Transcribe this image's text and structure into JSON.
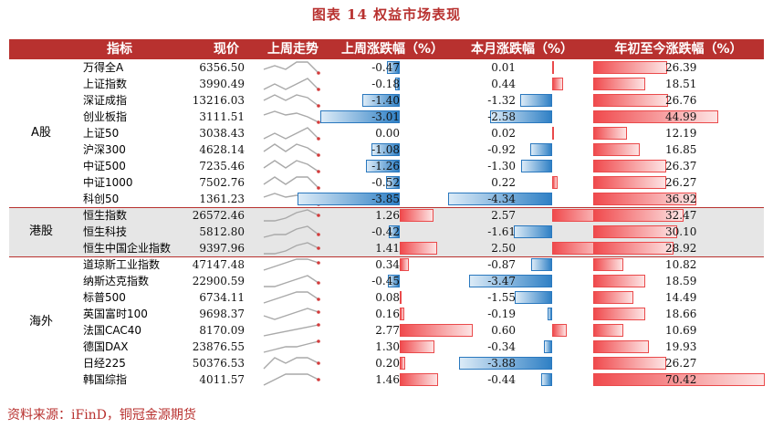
{
  "title": "图表 14 权益市场表现",
  "headers": {
    "name": "指标",
    "price": "现价",
    "trend": "上周走势",
    "week_change": "上周涨跌幅（%）",
    "month_change": "本月涨跌幅（%）",
    "ytd_change": "年初至今涨跌幅（%）"
  },
  "groups": [
    {
      "label": "A股",
      "start": 0,
      "count": 9,
      "shaded": false
    },
    {
      "label": "港股",
      "start": 9,
      "count": 3,
      "shaded": true
    },
    {
      "label": "海外",
      "start": 12,
      "count": 8,
      "shaded": false
    }
  ],
  "colors": {
    "accent": "#b8312f",
    "positive": "#f04a4d",
    "negative": "#2f80c5",
    "shade": "#e6e6e6"
  },
  "rows": [
    {
      "name": "万得全A",
      "price": "6356.50",
      "week": -0.47,
      "month": 0.01,
      "ytd": 26.39,
      "trend": [
        5,
        6,
        5,
        7,
        7,
        4
      ]
    },
    {
      "name": "上证指数",
      "price": "3990.49",
      "week": -0.18,
      "month": 0.44,
      "ytd": 18.51,
      "trend": [
        5,
        6,
        5,
        6,
        7,
        5
      ]
    },
    {
      "name": "深证成指",
      "price": "13216.03",
      "week": -1.4,
      "month": -1.32,
      "ytd": 26.76,
      "trend": [
        5,
        7,
        5,
        7,
        6,
        3
      ]
    },
    {
      "name": "创业板指",
      "price": "3111.51",
      "week": -3.01,
      "month": -2.58,
      "ytd": 44.99,
      "trend": [
        6,
        8,
        6,
        7,
        5,
        2
      ]
    },
    {
      "name": "上证50",
      "price": "3038.43",
      "week": 0.0,
      "month": 0.02,
      "ytd": 12.19,
      "trend": [
        5,
        6,
        5,
        6,
        7,
        5
      ]
    },
    {
      "name": "沪深300",
      "price": "4628.14",
      "week": -1.08,
      "month": -0.92,
      "ytd": 16.85,
      "trend": [
        5,
        7,
        5,
        7,
        6,
        4
      ]
    },
    {
      "name": "中证500",
      "price": "7235.46",
      "week": -1.26,
      "month": -1.3,
      "ytd": 26.37,
      "trend": [
        5,
        7,
        5,
        7,
        6,
        4
      ]
    },
    {
      "name": "中证1000",
      "price": "7502.76",
      "week": -0.52,
      "month": 0.22,
      "ytd": 26.27,
      "trend": [
        5,
        7,
        5,
        7,
        7,
        4
      ]
    },
    {
      "name": "科创50",
      "price": "1361.23",
      "week": -3.85,
      "month": -4.34,
      "ytd": 36.92,
      "trend": [
        6,
        8,
        6,
        7,
        5,
        2
      ]
    },
    {
      "name": "恒生指数",
      "price": "26572.46",
      "week": 1.26,
      "month": 2.57,
      "ytd": 32.47,
      "trend": [
        3,
        3,
        4,
        6,
        7,
        5
      ]
    },
    {
      "name": "恒生科技",
      "price": "5812.80",
      "week": -0.42,
      "month": -1.61,
      "ytd": 30.1,
      "trend": [
        3,
        4,
        4,
        6,
        7,
        4
      ]
    },
    {
      "name": "恒生中国企业指数",
      "price": "9397.96",
      "week": 1.41,
      "month": 2.5,
      "ytd": 28.92,
      "trend": [
        3,
        3,
        4,
        6,
        7,
        5
      ]
    },
    {
      "name": "道琼斯工业指数",
      "price": "47147.48",
      "week": 0.34,
      "month": -0.87,
      "ytd": 10.82,
      "trend": [
        4,
        5,
        6,
        7,
        7,
        6
      ]
    },
    {
      "name": "纳斯达克指数",
      "price": "22900.59",
      "week": -0.45,
      "month": -3.47,
      "ytd": 18.59,
      "trend": [
        4,
        4,
        5,
        6,
        7,
        5
      ]
    },
    {
      "name": "标普500",
      "price": "6734.11",
      "week": 0.08,
      "month": -1.55,
      "ytd": 14.49,
      "trend": [
        4,
        5,
        6,
        7,
        7,
        5
      ]
    },
    {
      "name": "英国富时100",
      "price": "9698.37",
      "week": 0.16,
      "month": -0.19,
      "ytd": 18.66,
      "trend": [
        5,
        4,
        5,
        6,
        7,
        6
      ]
    },
    {
      "name": "法国CAC40",
      "price": "8170.09",
      "week": 2.77,
      "month": 0.6,
      "ytd": 10.69,
      "trend": [
        2,
        3,
        4,
        5,
        6,
        7
      ]
    },
    {
      "name": "德国DAX",
      "price": "23876.55",
      "week": 1.3,
      "month": -0.34,
      "ytd": 19.93,
      "trend": [
        3,
        4,
        5,
        5,
        6,
        7
      ]
    },
    {
      "name": "日经225",
      "price": "50376.53",
      "week": 0.2,
      "month": -3.88,
      "ytd": 26.27,
      "trend": [
        4,
        6,
        5,
        6,
        6,
        5
      ]
    },
    {
      "name": "韩国综指",
      "price": "4011.57",
      "week": 1.46,
      "month": -0.44,
      "ytd": 70.42,
      "trend": [
        4,
        5,
        6,
        6,
        6,
        5
      ]
    }
  ],
  "source": "资料来源：iFinD，铜冠金源期货"
}
